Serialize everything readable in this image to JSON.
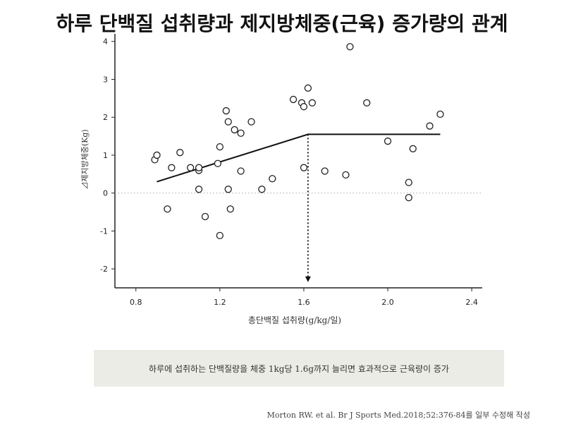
{
  "title": "하루 단백질 섭취량과 제지방체중(근육) 증가량의 관계",
  "chart_data": {
    "type": "scatter",
    "xlabel": "총단백질 섭취량(g/kg/일)",
    "ylabel": "⊿제지방체중(Kg)",
    "xlim": [
      0.7,
      2.45
    ],
    "ylim": [
      -2.5,
      4.2
    ],
    "xticks": [
      "0.8",
      "1.2",
      "1.6",
      "2.0",
      "2.4"
    ],
    "xtick_values": [
      0.8,
      1.2,
      1.6,
      2.0,
      2.4
    ],
    "yticks": [
      "4",
      "3",
      "2",
      "1",
      "0",
      "-1",
      "-2"
    ],
    "ytick_values": [
      4,
      3,
      2,
      1,
      0,
      -1,
      -2
    ],
    "grid": false,
    "reference_line_y": 0,
    "breakpoint": {
      "x": 1.62,
      "y": 1.55
    },
    "fit_line": [
      {
        "x": 0.9,
        "y": 0.3
      },
      {
        "x": 1.62,
        "y": 1.55
      },
      {
        "x": 2.25,
        "y": 1.55
      }
    ],
    "points": [
      {
        "x": 0.89,
        "y": 0.88
      },
      {
        "x": 0.9,
        "y": 1.0
      },
      {
        "x": 0.95,
        "y": -0.42
      },
      {
        "x": 0.97,
        "y": 0.67
      },
      {
        "x": 1.01,
        "y": 1.07
      },
      {
        "x": 1.06,
        "y": 0.67
      },
      {
        "x": 1.1,
        "y": 0.6
      },
      {
        "x": 1.1,
        "y": 0.67
      },
      {
        "x": 1.1,
        "y": 0.1
      },
      {
        "x": 1.13,
        "y": -0.62
      },
      {
        "x": 1.19,
        "y": 0.78
      },
      {
        "x": 1.2,
        "y": 1.22
      },
      {
        "x": 1.2,
        "y": -1.12
      },
      {
        "x": 1.23,
        "y": 2.17
      },
      {
        "x": 1.24,
        "y": 1.88
      },
      {
        "x": 1.24,
        "y": 0.1
      },
      {
        "x": 1.25,
        "y": -0.42
      },
      {
        "x": 1.27,
        "y": 1.67
      },
      {
        "x": 1.3,
        "y": 1.58
      },
      {
        "x": 1.3,
        "y": 0.58
      },
      {
        "x": 1.35,
        "y": 1.88
      },
      {
        "x": 1.4,
        "y": 0.1
      },
      {
        "x": 1.45,
        "y": 0.38
      },
      {
        "x": 1.55,
        "y": 2.47
      },
      {
        "x": 1.59,
        "y": 2.38
      },
      {
        "x": 1.6,
        "y": 2.28
      },
      {
        "x": 1.6,
        "y": 0.67
      },
      {
        "x": 1.62,
        "y": 2.77
      },
      {
        "x": 1.64,
        "y": 2.38
      },
      {
        "x": 1.7,
        "y": 0.58
      },
      {
        "x": 1.8,
        "y": 0.48
      },
      {
        "x": 1.82,
        "y": 3.86
      },
      {
        "x": 1.9,
        "y": 2.38
      },
      {
        "x": 2.0,
        "y": 1.37
      },
      {
        "x": 2.1,
        "y": 0.28
      },
      {
        "x": 2.1,
        "y": -0.12
      },
      {
        "x": 2.12,
        "y": 1.17
      },
      {
        "x": 2.2,
        "y": 1.77
      },
      {
        "x": 2.25,
        "y": 2.08
      }
    ]
  },
  "note": "하루에 섭취하는 단백질량을 체중 1kg당 1.6g까지 늘리면 효과적으로 근육량이 증가",
  "source": "Morton RW. et al. Br J Sports Med.2018;52:376-84를 일부 수정해 작성"
}
